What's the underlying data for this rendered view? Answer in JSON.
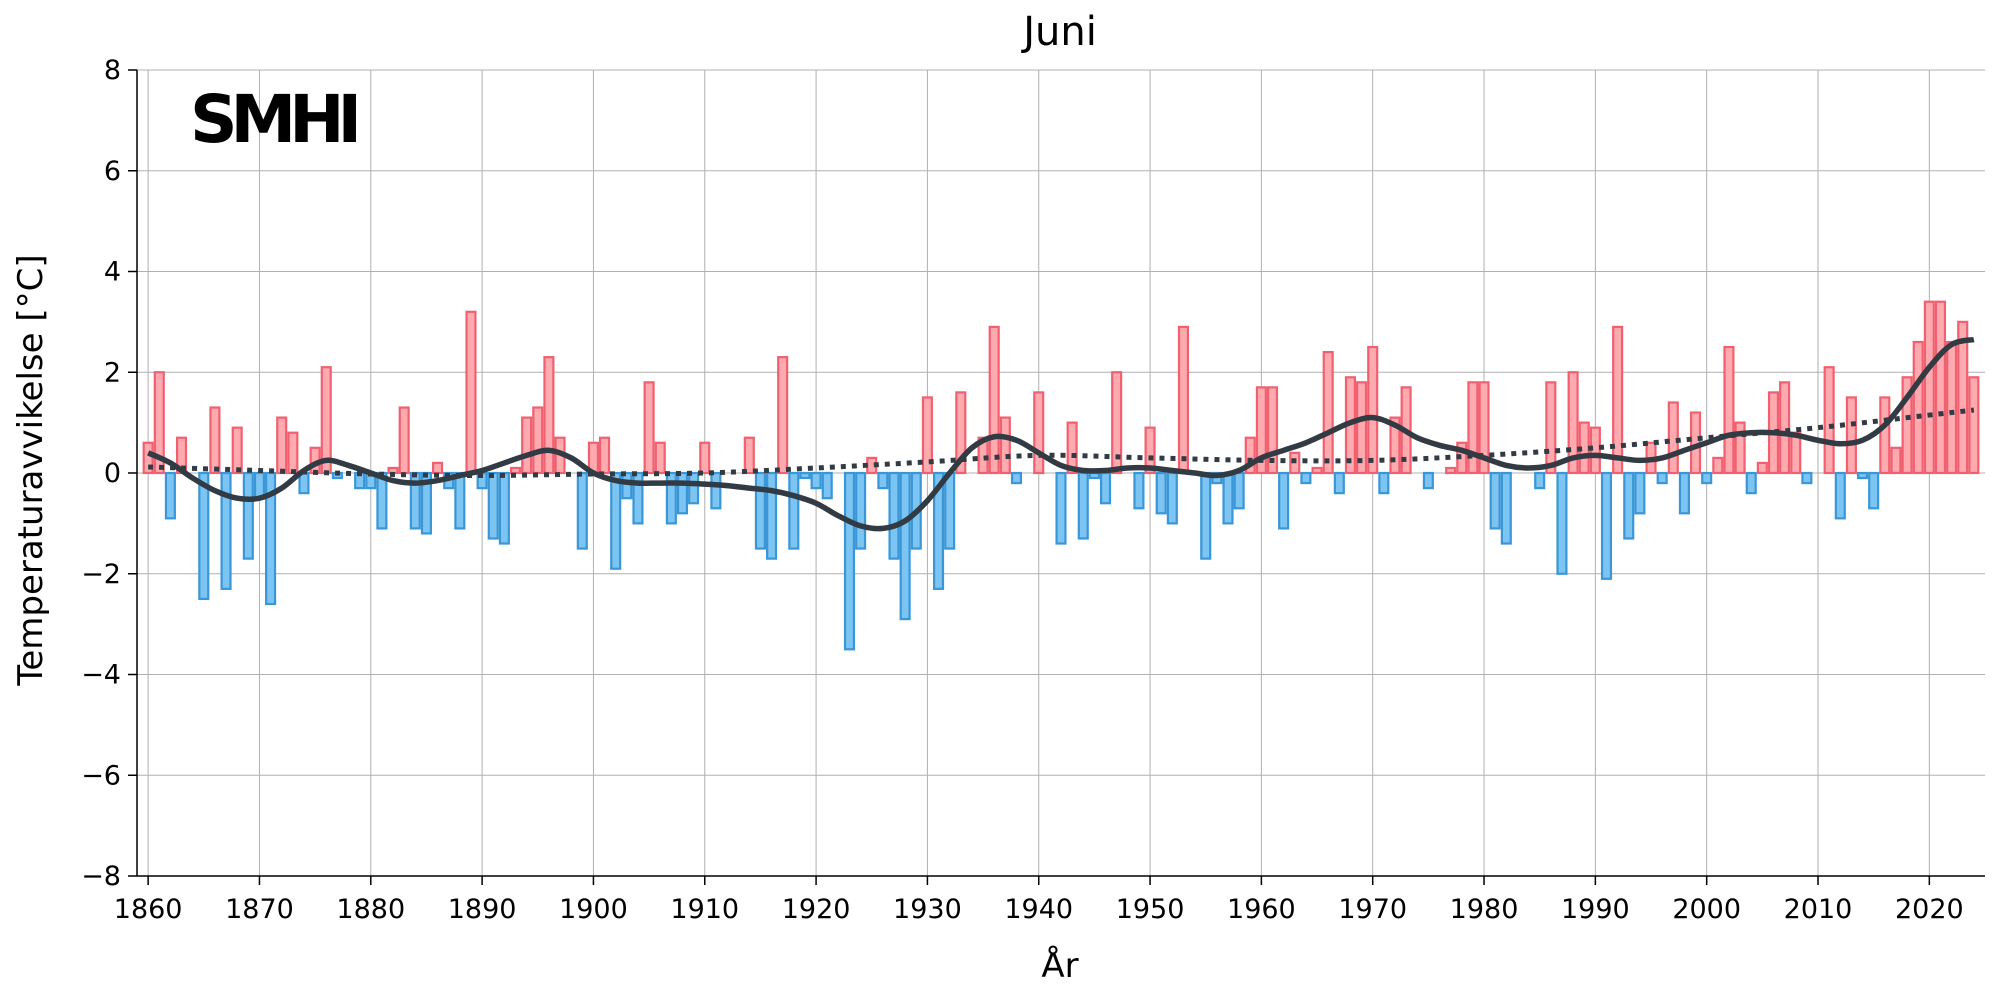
{
  "chart_data": {
    "type": "bar",
    "title": "Juni",
    "xlabel": "År",
    "ylabel": "Temperaturavvikelse [°C]",
    "logo_text": "SMHI",
    "xlim": [
      1859,
      2025
    ],
    "ylim": [
      -8,
      8
    ],
    "xticks": [
      1860,
      1870,
      1880,
      1890,
      1900,
      1910,
      1920,
      1930,
      1940,
      1950,
      1960,
      1970,
      1980,
      1990,
      2000,
      2010,
      2020
    ],
    "yticks": [
      -8,
      -6,
      -4,
      -2,
      0,
      2,
      4,
      6,
      8
    ],
    "ytick_labels": [
      "−8",
      "−6",
      "−4",
      "−2",
      "0",
      "2",
      "4",
      "6",
      "8"
    ],
    "grid": true,
    "colors": {
      "positive_fill": "#ffaaaf",
      "positive_edge": "#f06070",
      "negative_fill": "#7cc4f2",
      "negative_edge": "#3a96d6",
      "smooth_line": "#323b44",
      "trend_line": "#323b44"
    },
    "years": [
      1860,
      1861,
      1862,
      1863,
      1864,
      1865,
      1866,
      1867,
      1868,
      1869,
      1870,
      1871,
      1872,
      1873,
      1874,
      1875,
      1876,
      1877,
      1878,
      1879,
      1880,
      1881,
      1882,
      1883,
      1884,
      1885,
      1886,
      1887,
      1888,
      1889,
      1890,
      1891,
      1892,
      1893,
      1894,
      1895,
      1896,
      1897,
      1898,
      1899,
      1900,
      1901,
      1902,
      1903,
      1904,
      1905,
      1906,
      1907,
      1908,
      1909,
      1910,
      1911,
      1912,
      1913,
      1914,
      1915,
      1916,
      1917,
      1918,
      1919,
      1920,
      1921,
      1922,
      1923,
      1924,
      1925,
      1926,
      1927,
      1928,
      1929,
      1930,
      1931,
      1932,
      1933,
      1934,
      1935,
      1936,
      1937,
      1938,
      1939,
      1940,
      1941,
      1942,
      1943,
      1944,
      1945,
      1946,
      1947,
      1948,
      1949,
      1950,
      1951,
      1952,
      1953,
      1954,
      1955,
      1956,
      1957,
      1958,
      1959,
      1960,
      1961,
      1962,
      1963,
      1964,
      1965,
      1966,
      1967,
      1968,
      1969,
      1970,
      1971,
      1972,
      1973,
      1974,
      1975,
      1976,
      1977,
      1978,
      1979,
      1980,
      1981,
      1982,
      1983,
      1984,
      1985,
      1986,
      1987,
      1988,
      1989,
      1990,
      1991,
      1992,
      1993,
      1994,
      1995,
      1996,
      1997,
      1998,
      1999,
      2000,
      2001,
      2002,
      2003,
      2004,
      2005,
      2006,
      2007,
      2008,
      2009,
      2010,
      2011,
      2012,
      2013,
      2014,
      2015,
      2016,
      2017,
      2018,
      2019,
      2020,
      2021,
      2022,
      2023,
      2024
    ],
    "values": [
      0.6,
      2.0,
      -0.9,
      0.7,
      0.0,
      -2.5,
      1.3,
      -2.3,
      0.9,
      -1.7,
      -0.5,
      -2.6,
      1.1,
      0.8,
      -0.4,
      0.5,
      2.1,
      -0.1,
      0.0,
      -0.3,
      -0.3,
      -1.1,
      0.1,
      1.3,
      -1.1,
      -1.2,
      0.2,
      -0.3,
      -1.1,
      3.2,
      -0.3,
      -1.3,
      -1.4,
      0.1,
      1.1,
      1.3,
      2.3,
      0.7,
      0.0,
      -1.5,
      0.6,
      0.7,
      -1.9,
      -0.5,
      -1.0,
      1.8,
      0.6,
      -1.0,
      -0.8,
      -0.6,
      0.6,
      -0.7,
      0.0,
      0.0,
      0.7,
      -1.5,
      -1.7,
      2.3,
      -1.5,
      -0.1,
      -0.3,
      -0.5,
      0.0,
      -3.5,
      -1.5,
      0.3,
      -0.3,
      -1.7,
      -2.9,
      -1.5,
      1.5,
      -2.3,
      -1.5,
      1.6,
      0.0,
      0.7,
      2.9,
      1.1,
      -0.2,
      0.0,
      1.6,
      0.0,
      -1.4,
      1.0,
      -1.3,
      -0.1,
      -0.6,
      2.0,
      0.0,
      -0.7,
      0.9,
      -0.8,
      -1.0,
      2.9,
      0.0,
      -1.7,
      -0.2,
      -1.0,
      -0.7,
      0.7,
      1.7,
      1.7,
      -1.1,
      0.4,
      -0.2,
      0.1,
      2.4,
      -0.4,
      1.9,
      1.8,
      2.5,
      -0.4,
      1.1,
      1.7,
      0.0,
      -0.3,
      0.0,
      0.1,
      0.6,
      1.8,
      1.8,
      -1.1,
      -1.4,
      0.0,
      0.0,
      -0.3,
      1.8,
      -2.0,
      2.0,
      1.0,
      0.9,
      -2.1,
      2.9,
      -1.3,
      -0.8,
      0.6,
      -0.2,
      1.4,
      -0.8,
      1.2,
      -0.2,
      0.3,
      2.5,
      1.0,
      -0.4,
      0.2,
      1.6,
      1.8,
      0.8,
      -0.2,
      0.0,
      2.1,
      -0.9,
      1.5,
      -0.1,
      -0.7,
      1.5,
      0.5,
      1.9,
      2.6,
      3.4,
      3.4,
      2.6,
      3.0,
      1.9
    ],
    "smooth_series": {
      "x": [
        1860,
        1862,
        1864,
        1866,
        1868,
        1870,
        1872,
        1874,
        1876,
        1878,
        1880,
        1882,
        1884,
        1886,
        1888,
        1890,
        1892,
        1894,
        1896,
        1898,
        1900,
        1902,
        1904,
        1906,
        1908,
        1910,
        1912,
        1914,
        1916,
        1918,
        1920,
        1922,
        1924,
        1926,
        1928,
        1930,
        1932,
        1934,
        1936,
        1938,
        1940,
        1942,
        1944,
        1946,
        1948,
        1950,
        1952,
        1954,
        1956,
        1958,
        1960,
        1962,
        1964,
        1966,
        1968,
        1970,
        1972,
        1974,
        1976,
        1978,
        1980,
        1982,
        1984,
        1986,
        1988,
        1990,
        1992,
        1994,
        1996,
        1998,
        2000,
        2002,
        2004,
        2006,
        2008,
        2010,
        2012,
        2014,
        2016,
        2018,
        2020,
        2022,
        2024
      ],
      "y": [
        0.4,
        0.2,
        -0.1,
        -0.35,
        -0.5,
        -0.5,
        -0.3,
        0.05,
        0.25,
        0.15,
        0.0,
        -0.15,
        -0.2,
        -0.15,
        -0.05,
        0.05,
        0.2,
        0.35,
        0.45,
        0.3,
        0.0,
        -0.15,
        -0.2,
        -0.2,
        -0.2,
        -0.22,
        -0.25,
        -0.3,
        -0.35,
        -0.45,
        -0.6,
        -0.85,
        -1.05,
        -1.1,
        -0.95,
        -0.55,
        0.0,
        0.5,
        0.72,
        0.65,
        0.4,
        0.15,
        0.05,
        0.05,
        0.1,
        0.1,
        0.05,
        0.0,
        -0.05,
        0.05,
        0.3,
        0.45,
        0.6,
        0.8,
        1.0,
        1.1,
        0.95,
        0.7,
        0.55,
        0.45,
        0.3,
        0.15,
        0.1,
        0.15,
        0.3,
        0.35,
        0.3,
        0.25,
        0.3,
        0.45,
        0.6,
        0.75,
        0.8,
        0.8,
        0.75,
        0.65,
        0.58,
        0.65,
        0.95,
        1.5,
        2.1,
        2.55,
        2.65
      ]
    },
    "trend_series": {
      "x": [
        1860,
        1870,
        1880,
        1890,
        1900,
        1910,
        1920,
        1930,
        1940,
        1950,
        1960,
        1970,
        1980,
        1990,
        2000,
        2010,
        2020,
        2024
      ],
      "y": [
        0.12,
        0.05,
        -0.02,
        -0.05,
        -0.02,
        0.0,
        0.1,
        0.22,
        0.35,
        0.3,
        0.25,
        0.25,
        0.35,
        0.5,
        0.7,
        0.9,
        1.15,
        1.25
      ]
    }
  }
}
